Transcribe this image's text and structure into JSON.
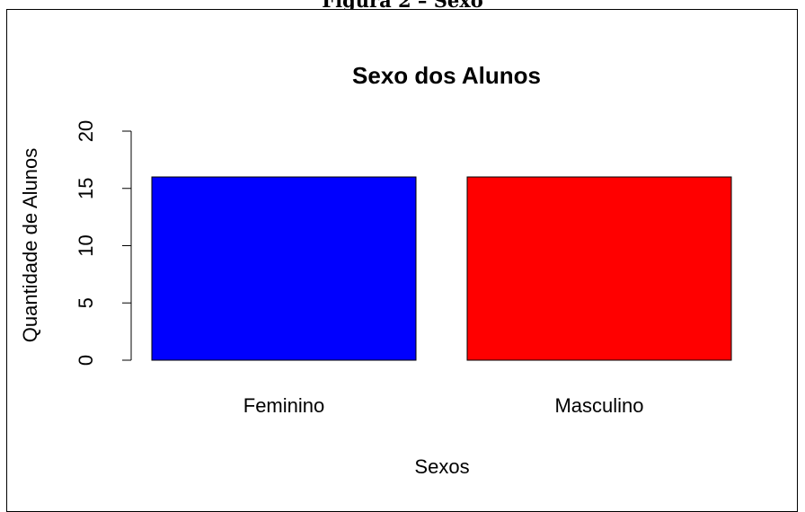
{
  "figure_caption": "Figura 2 – Sexo",
  "chart_data": {
    "type": "bar",
    "title": "Sexo dos Alunos",
    "xlabel": "Sexos",
    "ylabel": "Quantidade de Alunos",
    "categories": [
      "Feminino",
      "Masculino"
    ],
    "values": [
      16,
      16
    ],
    "colors": [
      "#0000ff",
      "#ff0000"
    ],
    "ylim": [
      0,
      20
    ],
    "yticks": [
      "0",
      "5",
      "10",
      "15",
      "20"
    ],
    "grid": false,
    "legend": "none"
  }
}
